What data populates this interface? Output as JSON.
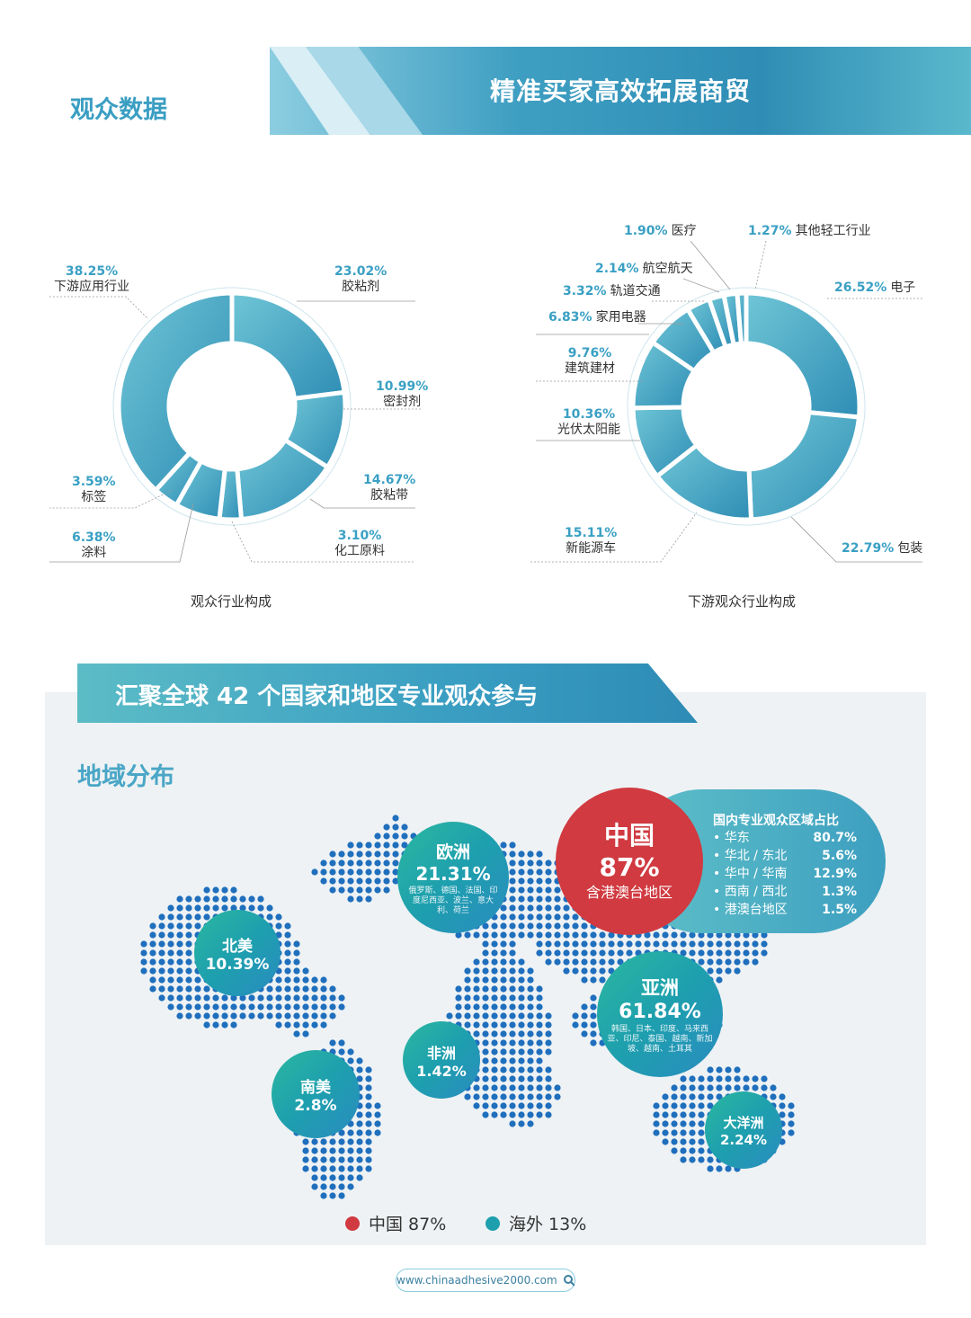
{
  "header": {
    "section_title": "观众数据",
    "banner_title": "精准买家高效拓展商贸"
  },
  "chart_data": [
    {
      "type": "donut",
      "title": "观众行业构成",
      "slices": [
        {
          "label": "胶粘剂",
          "value": 23.02,
          "pct": "23.02%"
        },
        {
          "label": "密封剂",
          "value": 10.99,
          "pct": "10.99%"
        },
        {
          "label": "胶粘带",
          "value": 14.67,
          "pct": "14.67%"
        },
        {
          "label": "化工原料",
          "value": 3.1,
          "pct": "3.10%"
        },
        {
          "label": "涂料",
          "value": 6.38,
          "pct": "6.38%"
        },
        {
          "label": "标签",
          "value": 3.59,
          "pct": "3.59%"
        },
        {
          "label": "下游应用行业",
          "value": 38.25,
          "pct": "38.25%"
        }
      ]
    },
    {
      "type": "donut",
      "title": "下游观众行业构成",
      "slices": [
        {
          "label": "电子",
          "value": 26.52,
          "pct": "26.52%"
        },
        {
          "label": "包装",
          "value": 22.79,
          "pct": "22.79%"
        },
        {
          "label": "新能源车",
          "value": 15.11,
          "pct": "15.11%"
        },
        {
          "label": "光伏太阳能",
          "value": 10.36,
          "pct": "10.36%"
        },
        {
          "label": "建筑建材",
          "value": 9.76,
          "pct": "9.76%"
        },
        {
          "label": "家用电器",
          "value": 6.83,
          "pct": "6.83%"
        },
        {
          "label": "轨道交通",
          "value": 3.32,
          "pct": "3.32%"
        },
        {
          "label": "航空航天",
          "value": 2.14,
          "pct": "2.14%"
        },
        {
          "label": "医疗",
          "value": 1.9,
          "pct": "1.90%"
        },
        {
          "label": "其他轻工行业",
          "value": 1.27,
          "pct": "1.27%"
        }
      ]
    }
  ],
  "global": {
    "banner": "汇聚全球 42 个国家和地区专业观众参与",
    "region_title": "地域分布",
    "regions": {
      "europe": {
        "name": "欧洲",
        "pct": "21.31%",
        "desc": "俄罗斯、德国、法国、印度尼西亚、波兰、意大利、荷兰"
      },
      "north_america": {
        "name": "北美",
        "pct": "10.39%"
      },
      "south_america": {
        "name": "南美",
        "pct": "2.8%"
      },
      "africa": {
        "name": "非洲",
        "pct": "1.42%"
      },
      "asia": {
        "name": "亚洲",
        "pct": "61.84%",
        "desc": "韩国、日本、印度、马来西亚、印尼、泰国、越南、新加坡、越南、土耳其"
      },
      "oceania": {
        "name": "大洋洲",
        "pct": "2.24%"
      }
    },
    "china": {
      "name": "中国",
      "pct": "87%",
      "sub": "含港澳台地区"
    },
    "domestic": {
      "title": "国内专业观众区域占比",
      "rows": [
        {
          "region": "• 华东",
          "value": "80.7%"
        },
        {
          "region": "• 华北 / 东北",
          "value": "5.6%"
        },
        {
          "region": "• 华中 / 华南",
          "value": "12.9%"
        },
        {
          "region": "• 西南 / 西北",
          "value": "1.3%"
        },
        {
          "region": "• 港澳台地区",
          "value": "1.5%"
        }
      ]
    },
    "legend": {
      "china": {
        "label": "中国 87%",
        "color": "#d03a40"
      },
      "overseas": {
        "label": "海外 13%",
        "color": "#1e9fae"
      }
    }
  },
  "footer": {
    "url": "www.chinaadhesive2000.com"
  }
}
